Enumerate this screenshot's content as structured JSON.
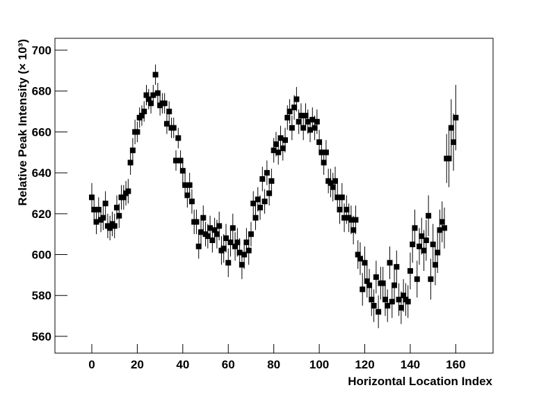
{
  "chart_data": {
    "type": "scatter",
    "x_label": "Horizontal Location Index",
    "y_label": "Relative Peak Intensity (× 10³)",
    "color": "#000000",
    "xlim": [
      -16.2,
      176.4
    ],
    "ylim": [
      551.8,
      705.8
    ],
    "xticks": [
      0,
      20,
      40,
      60,
      80,
      100,
      120,
      140,
      160
    ],
    "yticks": [
      560,
      580,
      600,
      620,
      640,
      660,
      680,
      700
    ],
    "x": [
      0,
      1,
      2,
      3,
      4,
      5,
      6,
      7,
      8,
      9,
      10,
      11,
      12,
      13,
      14,
      15,
      16,
      17,
      18,
      19,
      20,
      21,
      22,
      23,
      24,
      25,
      26,
      27,
      28,
      29,
      30,
      31,
      32,
      33,
      34,
      35,
      36,
      37,
      38,
      39,
      40,
      41,
      42,
      43,
      44,
      45,
      46,
      47,
      48,
      49,
      50,
      51,
      52,
      53,
      54,
      55,
      56,
      57,
      58,
      59,
      60,
      61,
      62,
      63,
      64,
      65,
      66,
      67,
      68,
      69,
      70,
      71,
      72,
      73,
      74,
      75,
      76,
      77,
      78,
      79,
      80,
      81,
      82,
      83,
      84,
      85,
      86,
      87,
      88,
      89,
      90,
      91,
      92,
      93,
      94,
      95,
      96,
      97,
      98,
      99,
      100,
      101,
      102,
      103,
      104,
      105,
      106,
      107,
      108,
      109,
      110,
      111,
      112,
      113,
      114,
      115,
      116,
      117,
      118,
      119,
      120,
      121,
      122,
      123,
      124,
      125,
      126,
      127,
      128,
      129,
      130,
      131,
      132,
      133,
      134,
      135,
      136,
      137,
      138,
      139,
      140,
      141,
      142,
      143,
      144,
      145,
      146,
      147,
      148,
      149,
      150,
      151,
      152,
      153,
      154,
      155,
      156,
      157,
      158,
      159,
      160
    ],
    "values": [
      628,
      622,
      616,
      622,
      617,
      618,
      625,
      614,
      613,
      615,
      614,
      623,
      619,
      628,
      628,
      630,
      631,
      645,
      651,
      660,
      660,
      667,
      668,
      670,
      678,
      676,
      674,
      678,
      688,
      679,
      673,
      674,
      674,
      664,
      670,
      662,
      662,
      646,
      657,
      646,
      641,
      634,
      629,
      634,
      626,
      616,
      616,
      604,
      611,
      618,
      610,
      609,
      613,
      607,
      612,
      610,
      614,
      602,
      603,
      608,
      596,
      606,
      613,
      604,
      606,
      601,
      595,
      600,
      606,
      602,
      610,
      625,
      618,
      627,
      623,
      637,
      626,
      640,
      630,
      636,
      651,
      654,
      650,
      657,
      652,
      656,
      667,
      670,
      662,
      672,
      676,
      665,
      668,
      662,
      668,
      665,
      661,
      666,
      662,
      665,
      655,
      650,
      645,
      650,
      636,
      635,
      633,
      636,
      628,
      622,
      628,
      618,
      622,
      618,
      617,
      612,
      617,
      600,
      598,
      583,
      596,
      587,
      585,
      578,
      575,
      589,
      572,
      586,
      586,
      578,
      575,
      596,
      577,
      585,
      594,
      578,
      574,
      580,
      578,
      577,
      592,
      605,
      613,
      588,
      604,
      609,
      602,
      607,
      619,
      588,
      605,
      595,
      601,
      612,
      616,
      613,
      647,
      647,
      662,
      655,
      667
    ],
    "errors": [
      7,
      6,
      6,
      6,
      6,
      6,
      6,
      6,
      6,
      6,
      6,
      6,
      6,
      6,
      6,
      6,
      6,
      6,
      6,
      6,
      5,
      5,
      5,
      5,
      5,
      5,
      5,
      5,
      5,
      5,
      5,
      5,
      5,
      5,
      5,
      5,
      5,
      5,
      5,
      5,
      6,
      6,
      6,
      6,
      6,
      6,
      6,
      6,
      6,
      6,
      6,
      6,
      6,
      6,
      6,
      7,
      7,
      7,
      7,
      7,
      7,
      7,
      7,
      7,
      7,
      7,
      7,
      7,
      7,
      7,
      6,
      6,
      6,
      6,
      6,
      6,
      6,
      6,
      6,
      6,
      6,
      6,
      6,
      6,
      6,
      6,
      6,
      6,
      6,
      6,
      6,
      6,
      6,
      6,
      6,
      6,
      6,
      6,
      6,
      6,
      6,
      6,
      6,
      6,
      6,
      7,
      7,
      7,
      7,
      7,
      7,
      7,
      7,
      7,
      7,
      7,
      7,
      7,
      8,
      8,
      8,
      8,
      8,
      8,
      8,
      8,
      8,
      8,
      8,
      8,
      8,
      8,
      8,
      8,
      8,
      8,
      8,
      8,
      8,
      8,
      9,
      9,
      9,
      9,
      9,
      9,
      10,
      10,
      10,
      10,
      10,
      10,
      10,
      10,
      10,
      10,
      12,
      14,
      14,
      14,
      16
    ]
  }
}
